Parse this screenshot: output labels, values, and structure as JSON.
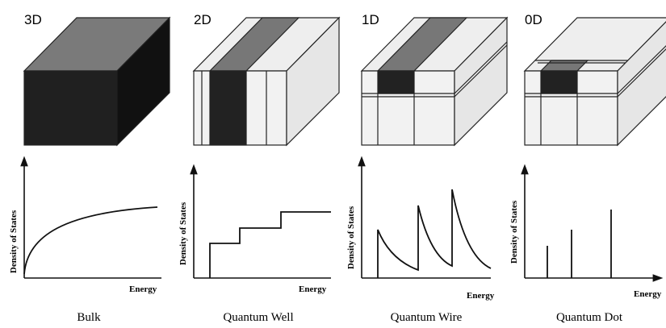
{
  "panels": [
    {
      "dimension": "3D",
      "y_label": "Density of States",
      "x_label": "Energy",
      "caption": "Bulk"
    },
    {
      "dimension": "2D",
      "y_label": "Density of States",
      "x_label": "Energy",
      "caption": "Quantum Well"
    },
    {
      "dimension": "1D",
      "y_label": "Density of States",
      "x_label": "Energy",
      "caption": "Quantum Wire"
    },
    {
      "dimension": "0D",
      "y_label": "Density of States",
      "x_label": "Energy",
      "caption": "Quantum Dot"
    }
  ]
}
